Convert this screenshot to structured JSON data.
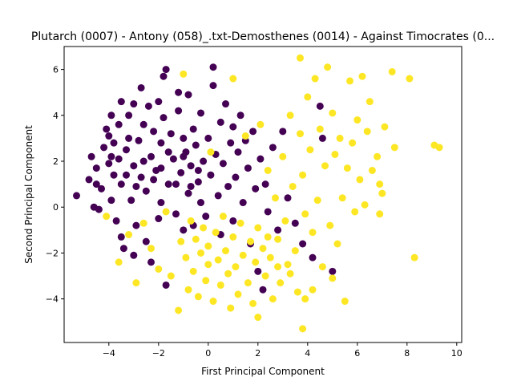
{
  "chart_data": {
    "type": "scatter",
    "title": "Plutarch (0007) - Antony (058)_.txt-Demosthenes (0014) - Against Timocrates (0...",
    "xlabel": "First Principal Component",
    "ylabel": "Second Principal Component",
    "xlim": [
      -5.8,
      10.2
    ],
    "ylim": [
      -5.9,
      7.0
    ],
    "xticks": [
      -4,
      -2,
      0,
      2,
      4,
      6,
      8,
      10
    ],
    "yticks": [
      -4,
      -2,
      0,
      2,
      4,
      6
    ],
    "xtick_labels": [
      "−4",
      "−2",
      "0",
      "2",
      "4",
      "6",
      "8",
      "10"
    ],
    "ytick_labels": [
      "−4",
      "−2",
      "0",
      "2",
      "4",
      "6"
    ],
    "grid": false,
    "legend": "none",
    "series": [
      {
        "color": "#440154",
        "points": [
          [
            -5.3,
            0.5
          ],
          [
            -4.8,
            1.2
          ],
          [
            -4.7,
            2.2
          ],
          [
            -4.6,
            0.0
          ],
          [
            -4.5,
            1.7
          ],
          [
            -4.4,
            -0.1
          ],
          [
            -4.3,
            0.8
          ],
          [
            -4.2,
            2.6
          ],
          [
            -4.1,
            3.4
          ],
          [
            -4.0,
            1.9
          ],
          [
            -4.0,
            3.1
          ],
          [
            -3.9,
            4.0
          ],
          [
            -3.9,
            0.3
          ],
          [
            -3.8,
            1.4
          ],
          [
            -3.8,
            2.8
          ],
          [
            -3.7,
            -0.6
          ],
          [
            -3.6,
            2.1
          ],
          [
            -3.6,
            3.6
          ],
          [
            -3.5,
            4.6
          ],
          [
            -3.5,
            1.0
          ],
          [
            -3.5,
            -1.3
          ],
          [
            -3.4,
            -1.8
          ],
          [
            -3.3,
            2.5
          ],
          [
            -3.2,
            4.0
          ],
          [
            -3.2,
            3.0
          ],
          [
            -3.1,
            0.3
          ],
          [
            -3.0,
            4.5
          ],
          [
            -3.0,
            1.8
          ],
          [
            -3.0,
            -2.1
          ],
          [
            -2.9,
            -0.8
          ],
          [
            -2.8,
            2.9
          ],
          [
            -2.7,
            5.2
          ],
          [
            -2.7,
            1.3
          ],
          [
            -2.6,
            3.6
          ],
          [
            -2.5,
            0.7
          ],
          [
            -2.5,
            -1.5
          ],
          [
            -2.4,
            4.4
          ],
          [
            -2.3,
            2.2
          ],
          [
            -2.3,
            -2.4
          ],
          [
            -2.2,
            3.3
          ],
          [
            -2.1,
            1.6
          ],
          [
            -2.0,
            4.6
          ],
          [
            -2.0,
            -0.5
          ],
          [
            -1.9,
            0.2
          ],
          [
            -1.9,
            2.8
          ],
          [
            -1.8,
            5.7
          ],
          [
            -1.8,
            3.9
          ],
          [
            -1.7,
            6.0
          ],
          [
            -1.7,
            -3.4
          ],
          [
            -1.6,
            1.0
          ],
          [
            -1.5,
            3.2
          ],
          [
            -1.4,
            2.1
          ],
          [
            -1.3,
            -0.3
          ],
          [
            -1.2,
            4.2
          ],
          [
            -1.2,
            5.0
          ],
          [
            -1.1,
            1.5
          ],
          [
            -1.0,
            3.0
          ],
          [
            -1.0,
            -1.0
          ],
          [
            -0.9,
            2.4
          ],
          [
            -0.8,
            0.6
          ],
          [
            -0.8,
            4.9
          ],
          [
            -0.7,
            1.8
          ],
          [
            -0.6,
            3.4
          ],
          [
            -0.6,
            -0.8
          ],
          [
            -0.5,
            2.7
          ],
          [
            -0.4,
            1.1
          ],
          [
            -0.3,
            4.1
          ],
          [
            -0.3,
            0.2
          ],
          [
            -0.2,
            2.0
          ],
          [
            -0.1,
            -0.4
          ],
          [
            0.0,
            3.0
          ],
          [
            0.1,
            1.4
          ],
          [
            0.2,
            5.3
          ],
          [
            0.2,
            6.1
          ],
          [
            0.3,
            2.3
          ],
          [
            0.4,
            0.5
          ],
          [
            0.5,
            3.7
          ],
          [
            0.5,
            -1.2
          ],
          [
            0.6,
            1.9
          ],
          [
            0.7,
            4.5
          ],
          [
            0.8,
            0.9
          ],
          [
            0.9,
            2.8
          ],
          [
            1.0,
            3.5
          ],
          [
            1.0,
            -0.6
          ],
          [
            1.1,
            1.3
          ],
          [
            1.2,
            2.4
          ],
          [
            1.3,
            4.0
          ],
          [
            1.4,
            0.2
          ],
          [
            1.5,
            2.9
          ],
          [
            1.6,
            1.7
          ],
          [
            1.7,
            -1.6
          ],
          [
            1.8,
            3.3
          ],
          [
            1.9,
            0.8
          ],
          [
            2.0,
            -2.8
          ],
          [
            2.1,
            2.1
          ],
          [
            2.2,
            -3.6
          ],
          [
            2.3,
            1.0
          ],
          [
            2.4,
            -0.2
          ],
          [
            2.6,
            2.6
          ],
          [
            2.8,
            -1.0
          ],
          [
            3.0,
            3.3
          ],
          [
            3.2,
            0.4
          ],
          [
            3.5,
            -0.7
          ],
          [
            3.8,
            -1.6
          ],
          [
            4.2,
            -2.2
          ],
          [
            4.5,
            4.4
          ],
          [
            4.6,
            3.0
          ],
          [
            5.0,
            -2.8
          ],
          [
            -4.5,
            1.0
          ],
          [
            -3.9,
            2.2
          ],
          [
            -3.3,
            1.4
          ],
          [
            -2.9,
            0.9
          ],
          [
            -2.6,
            2.0
          ],
          [
            -2.2,
            1.2
          ],
          [
            -1.9,
            1.7
          ],
          [
            -1.6,
            2.4
          ],
          [
            -1.3,
            1.0
          ],
          [
            -1.0,
            2.2
          ],
          [
            -0.7,
            0.9
          ],
          [
            -0.4,
            1.6
          ]
        ]
      },
      {
        "color": "#fde725",
        "points": [
          [
            -4.1,
            -0.4
          ],
          [
            -3.6,
            -2.4
          ],
          [
            -3.2,
            -1.2
          ],
          [
            -2.9,
            -3.3
          ],
          [
            -2.6,
            -0.7
          ],
          [
            -2.3,
            -1.8
          ],
          [
            -2.0,
            -2.7
          ],
          [
            -1.7,
            -0.2
          ],
          [
            -1.5,
            -3.0
          ],
          [
            -1.2,
            -4.5
          ],
          [
            -1.1,
            -1.5
          ],
          [
            -1.0,
            5.8
          ],
          [
            -0.9,
            -2.2
          ],
          [
            -0.8,
            -3.6
          ],
          [
            -0.7,
            -0.6
          ],
          [
            -0.6,
            -2.8
          ],
          [
            -0.5,
            -1.4
          ],
          [
            -0.4,
            -3.9
          ],
          [
            -0.3,
            -2.0
          ],
          [
            -0.2,
            -0.9
          ],
          [
            -0.1,
            -3.2
          ],
          [
            0.0,
            -1.7
          ],
          [
            0.0,
            -2.5
          ],
          [
            0.1,
            2.4
          ],
          [
            0.2,
            -4.1
          ],
          [
            0.3,
            -1.1
          ],
          [
            0.4,
            -2.3
          ],
          [
            0.5,
            -3.4
          ],
          [
            0.6,
            -0.4
          ],
          [
            0.7,
            -1.9
          ],
          [
            0.8,
            -2.9
          ],
          [
            0.9,
            -4.4
          ],
          [
            1.0,
            -1.3
          ],
          [
            1.0,
            5.6
          ],
          [
            1.1,
            -2.6
          ],
          [
            1.2,
            -3.8
          ],
          [
            1.3,
            -0.7
          ],
          [
            1.4,
            -2.1
          ],
          [
            1.5,
            3.1
          ],
          [
            1.6,
            -3.3
          ],
          [
            1.7,
            -1.5
          ],
          [
            1.8,
            -4.2
          ],
          [
            1.9,
            -2.4
          ],
          [
            2.0,
            -0.9
          ],
          [
            2.0,
            -4.8
          ],
          [
            2.1,
            3.6
          ],
          [
            2.2,
            -1.8
          ],
          [
            2.3,
            -3.0
          ],
          [
            2.4,
            1.6
          ],
          [
            2.5,
            -2.2
          ],
          [
            2.6,
            -4.0
          ],
          [
            2.7,
            0.4
          ],
          [
            2.8,
            -1.4
          ],
          [
            2.9,
            -3.3
          ],
          [
            3.0,
            2.2
          ],
          [
            3.1,
            -0.6
          ],
          [
            3.2,
            -2.5
          ],
          [
            3.3,
            4.0
          ],
          [
            3.4,
            0.9
          ],
          [
            3.5,
            -1.9
          ],
          [
            3.6,
            -3.7
          ],
          [
            3.7,
            6.5
          ],
          [
            3.7,
            3.2
          ],
          [
            3.8,
            1.4
          ],
          [
            3.8,
            -5.3
          ],
          [
            3.9,
            -0.3
          ],
          [
            4.0,
            4.8
          ],
          [
            4.1,
            2.5
          ],
          [
            4.2,
            -1.1
          ],
          [
            4.3,
            5.6
          ],
          [
            4.4,
            0.3
          ],
          [
            4.5,
            3.4
          ],
          [
            4.6,
            -2.6
          ],
          [
            4.7,
            1.8
          ],
          [
            4.8,
            6.1
          ],
          [
            4.9,
            -0.8
          ],
          [
            5.0,
            4.1
          ],
          [
            5.1,
            2.3
          ],
          [
            5.2,
            -1.6
          ],
          [
            5.3,
            3.0
          ],
          [
            5.4,
            0.4
          ],
          [
            5.5,
            -4.1
          ],
          [
            5.6,
            1.7
          ],
          [
            5.7,
            5.5
          ],
          [
            5.8,
            2.8
          ],
          [
            5.9,
            -0.2
          ],
          [
            6.0,
            3.8
          ],
          [
            6.1,
            1.2
          ],
          [
            6.2,
            5.7
          ],
          [
            6.3,
            0.1
          ],
          [
            6.4,
            3.3
          ],
          [
            6.5,
            4.6
          ],
          [
            6.6,
            1.6
          ],
          [
            6.8,
            2.2
          ],
          [
            6.9,
            -0.3
          ],
          [
            7.0,
            0.6
          ],
          [
            7.1,
            3.5
          ],
          [
            7.4,
            5.9
          ],
          [
            7.5,
            2.6
          ],
          [
            8.1,
            5.6
          ],
          [
            8.3,
            -2.2
          ],
          [
            9.1,
            2.7
          ],
          [
            9.3,
            2.6
          ],
          [
            6.9,
            1.0
          ],
          [
            5.0,
            -3.1
          ],
          [
            4.2,
            -3.6
          ],
          [
            3.9,
            -4.0
          ],
          [
            3.3,
            -2.9
          ],
          [
            2.8,
            -2.6
          ],
          [
            2.4,
            -1.3
          ]
        ]
      }
    ]
  }
}
